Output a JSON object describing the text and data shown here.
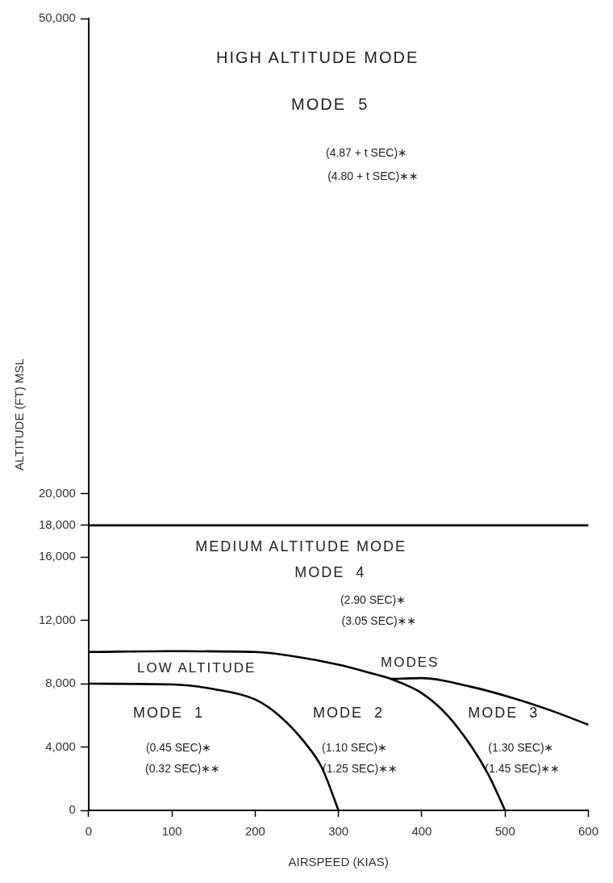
{
  "chart_data": {
    "type": "line",
    "xlabel": "AIRSPEED (KIAS)",
    "ylabel": "ALTITUDE (FT) MSL",
    "xlim": [
      0,
      600
    ],
    "xticks": [
      0,
      100,
      200,
      300,
      400,
      500,
      600
    ],
    "ylim": [
      0,
      50000
    ],
    "yticks": [
      0,
      {
        "value": 4000,
        "label": "4,000"
      },
      {
        "value": 8000,
        "label": "8,000"
      },
      {
        "value": 12000,
        "label": "12,000"
      },
      {
        "value": 16000,
        "label": "16,000"
      },
      {
        "value": 18000,
        "label": "18,000"
      },
      {
        "value": 20000,
        "label": "20,000"
      },
      {
        "value": 50000,
        "label": "50,000"
      }
    ],
    "grid": false,
    "legend": false,
    "marker": "none",
    "line_style": "solid",
    "series": [
      {
        "color": "#000000",
        "x": [
          0,
          100,
          150,
          200,
          230,
          260,
          280,
          300
        ],
        "values": [
          8000,
          7950,
          7660,
          7000,
          5930,
          4250,
          2700,
          0
        ]
      },
      {
        "color": "#000000",
        "x": [
          0,
          100,
          200,
          250,
          300,
          340,
          363,
          400,
          430,
          460,
          480,
          500
        ],
        "values": [
          10000,
          10050,
          10000,
          9700,
          9200,
          8650,
          8300,
          7400,
          6050,
          4000,
          2250,
          0
        ]
      },
      {
        "color": "#000000",
        "x": [
          363,
          400,
          457,
          509,
          558,
          600
        ],
        "values": [
          8300,
          8350,
          7830,
          7100,
          6250,
          5400
        ]
      }
    ],
    "ref_lines": [
      {
        "axis": "y",
        "value": 18000,
        "color": "#000000",
        "line_style": "solid"
      }
    ],
    "annotations": [
      "HIGH ALTITUDE MODE",
      "MODE  5",
      "(4.87 + t SEC)∗",
      "(4.80 + t SEC)∗∗",
      "MEDIUM ALTITUDE MODE",
      "MODE  4",
      "(2.90 SEC)∗",
      "(3.05 SEC)∗∗",
      "LOW ALTITUDE",
      "MODES",
      "MODE  1",
      "(0.45 SEC)∗",
      "(0.32 SEC)∗∗",
      "MODE  2",
      "(1.10 SEC)∗",
      "(1.25 SEC)∗∗",
      "MODE  3",
      "(1.30 SEC)∗",
      "(1.45 SEC)∗∗"
    ]
  }
}
